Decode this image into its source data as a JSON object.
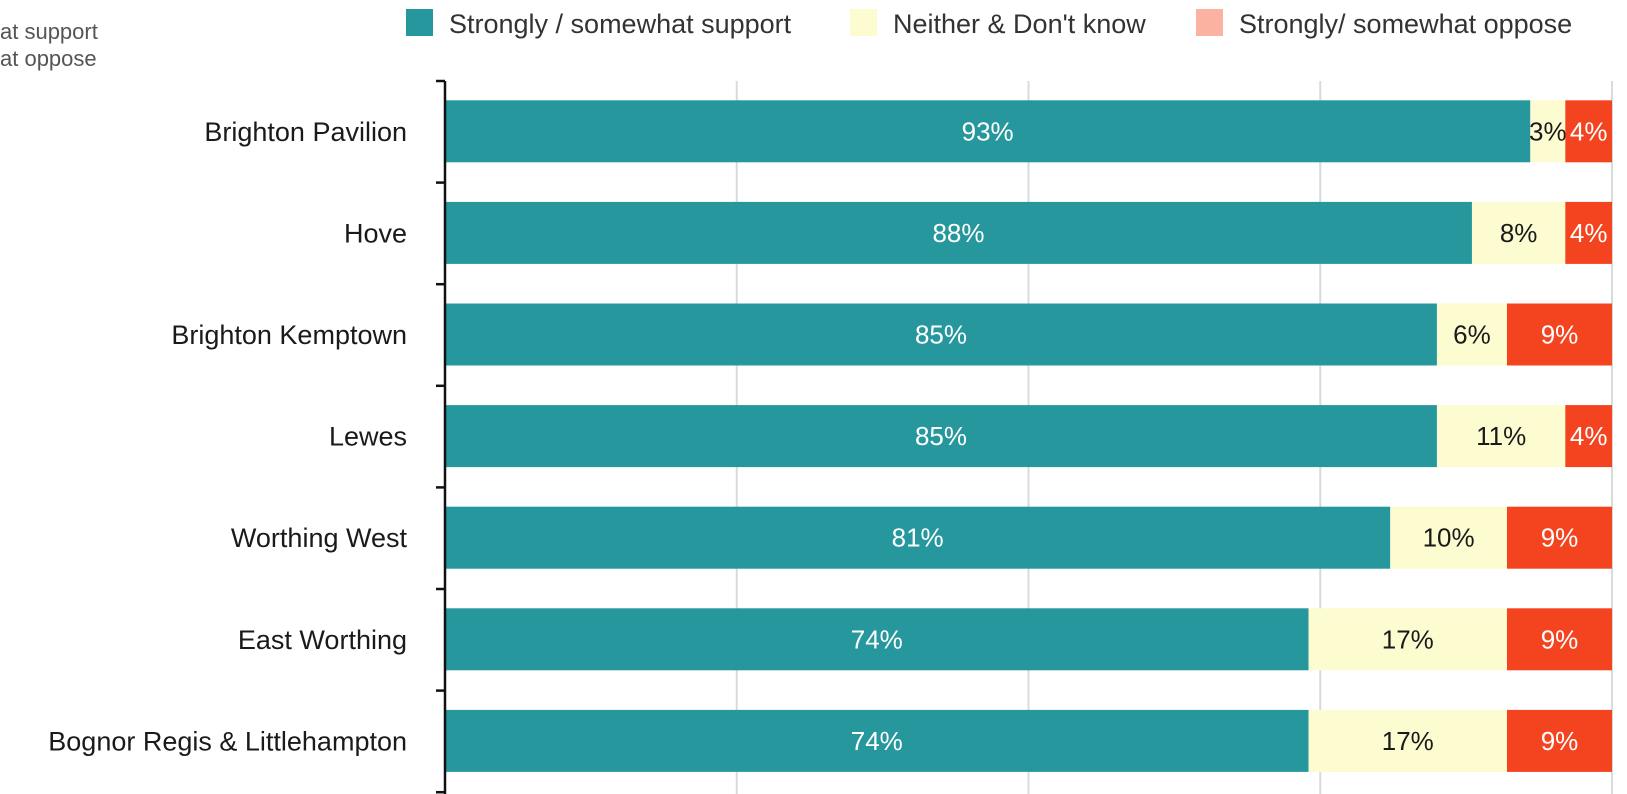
{
  "side_note": {
    "line1": "at support",
    "line2": "at oppose"
  },
  "chart_data": {
    "type": "bar",
    "orientation": "horizontal",
    "stacked": true,
    "categories": [
      "Brighton Pavilion",
      "Hove",
      "Brighton Kemptown",
      "Lewes",
      "Worthing West",
      "East Worthing",
      "Bognor Regis & Littlehampton"
    ],
    "series": [
      {
        "name": "Strongly / somewhat support",
        "color": "#26989d",
        "label_color": "#ffffff",
        "values": [
          93,
          88,
          85,
          85,
          81,
          74,
          74
        ],
        "labels": [
          "93%",
          "88%",
          "85%",
          "85%",
          "81%",
          "74%",
          "74%"
        ]
      },
      {
        "name": "Neither & Don't know",
        "color": "#fdfbd0",
        "label_color": "#1a1a1a",
        "values": [
          3,
          8,
          6,
          11,
          10,
          17,
          17
        ],
        "labels": [
          "3%",
          "8%",
          "6%",
          "11%",
          "10%",
          "17%",
          "17%"
        ]
      },
      {
        "name": "Strongly/ somewhat oppose",
        "color": "#f4431f",
        "legend_color": "#fcb2a0",
        "label_color": "#ffffff",
        "values": [
          4,
          4,
          9,
          4,
          9,
          9,
          9
        ],
        "labels": [
          "4%",
          "4%",
          "9%",
          "4%",
          "9%",
          "9%",
          "9%"
        ]
      }
    ],
    "xlim": [
      0,
      100
    ],
    "grid": true,
    "legend": "top"
  }
}
